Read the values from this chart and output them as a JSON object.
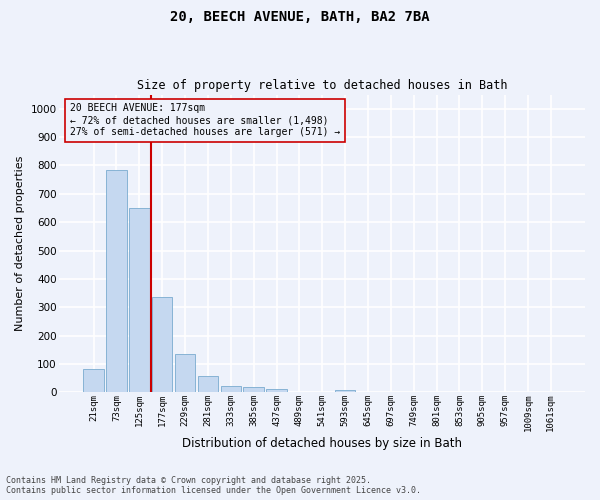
{
  "title_line1": "20, BEECH AVENUE, BATH, BA2 7BA",
  "title_line2": "Size of property relative to detached houses in Bath",
  "xlabel": "Distribution of detached houses by size in Bath",
  "ylabel": "Number of detached properties",
  "bar_color": "#c5d8f0",
  "bar_edge_color": "#7aabcf",
  "background_color": "#eef2fb",
  "grid_color": "#ffffff",
  "annotation_text_line1": "20 BEECH AVENUE: 177sqm",
  "annotation_text_line2": "← 72% of detached houses are smaller (1,498)",
  "annotation_text_line3": "27% of semi-detached houses are larger (571) →",
  "annotation_box_color": "#cc0000",
  "categories": [
    "21sqm",
    "73sqm",
    "125sqm",
    "177sqm",
    "229sqm",
    "281sqm",
    "333sqm",
    "385sqm",
    "437sqm",
    "489sqm",
    "541sqm",
    "593sqm",
    "645sqm",
    "697sqm",
    "749sqm",
    "801sqm",
    "853sqm",
    "905sqm",
    "957sqm",
    "1009sqm",
    "1061sqm"
  ],
  "values": [
    83,
    783,
    650,
    335,
    135,
    58,
    24,
    20,
    11,
    0,
    0,
    9,
    0,
    0,
    0,
    0,
    0,
    0,
    0,
    0,
    0
  ],
  "ylim": [
    0,
    1050
  ],
  "yticks": [
    0,
    100,
    200,
    300,
    400,
    500,
    600,
    700,
    800,
    900,
    1000
  ],
  "footnote_line1": "Contains HM Land Registry data © Crown copyright and database right 2025.",
  "footnote_line2": "Contains public sector information licensed under the Open Government Licence v3.0."
}
